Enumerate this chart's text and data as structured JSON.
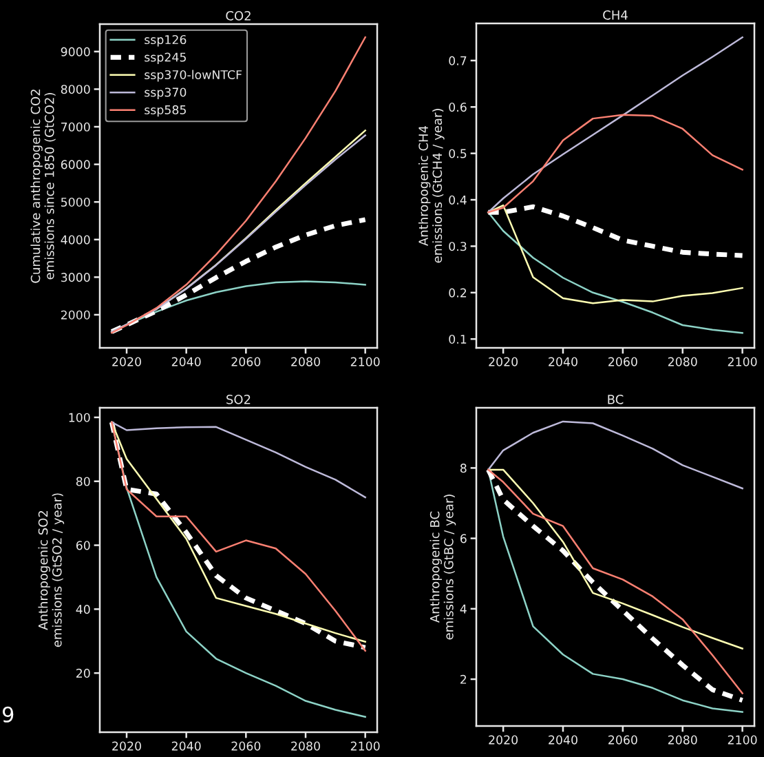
{
  "chart_data": [
    {
      "type": "line",
      "title": "CO2",
      "ylabel": "Cumulative anthropogenic CO2\nemissions since 1850 (GtCO2)",
      "x": [
        2015,
        2020,
        2030,
        2040,
        2050,
        2060,
        2070,
        2080,
        2090,
        2100
      ],
      "xlim": [
        2011,
        2104
      ],
      "xticks": [
        2020,
        2040,
        2060,
        2080,
        2100
      ],
      "ylim": [
        1120,
        9730
      ],
      "yticks": [
        2000,
        3000,
        4000,
        5000,
        6000,
        7000,
        8000,
        9000
      ],
      "grid": false,
      "legend": "top left",
      "series": [
        {
          "name": "ssp126",
          "color": "#8dd3c7",
          "values": [
            1550,
            1730,
            2080,
            2380,
            2600,
            2760,
            2860,
            2890,
            2860,
            2800
          ]
        },
        {
          "name": "ssp245",
          "color": "#ffffff",
          "line_style": "dashed",
          "values": [
            1550,
            1730,
            2100,
            2530,
            2990,
            3420,
            3800,
            4120,
            4370,
            4530
          ]
        },
        {
          "name": "ssp370-lowNTCF",
          "color": "#ffffb3",
          "values": [
            1550,
            1740,
            2150,
            2700,
            3330,
            4040,
            4780,
            5500,
            6200,
            6900
          ]
        },
        {
          "name": "ssp370",
          "color": "#bebada",
          "values": [
            1550,
            1740,
            2150,
            2690,
            3320,
            4020,
            4740,
            5450,
            6130,
            6770
          ]
        },
        {
          "name": "ssp585",
          "color": "#fb8072",
          "values": [
            1520,
            1720,
            2180,
            2800,
            3600,
            4500,
            5550,
            6700,
            7950,
            9380
          ]
        }
      ]
    },
    {
      "type": "line",
      "title": "CH4",
      "ylabel": "Anthropogenic CH4\nemissions (GtCH4 / year)",
      "x": [
        2015,
        2020,
        2030,
        2040,
        2050,
        2060,
        2070,
        2080,
        2090,
        2100
      ],
      "xlim": [
        2011,
        2104
      ],
      "xticks": [
        2020,
        2040,
        2060,
        2080,
        2100
      ],
      "ylim": [
        0.081,
        0.78
      ],
      "yticks": [
        0.1,
        0.2,
        0.3,
        0.4,
        0.5,
        0.6,
        0.7
      ],
      "grid": false,
      "series": [
        {
          "color": "#8dd3c7",
          "values": [
            0.373,
            0.333,
            0.275,
            0.232,
            0.2,
            0.18,
            0.157,
            0.13,
            0.12,
            0.113
          ]
        },
        {
          "color": "#ffffff",
          "line_style": "dashed",
          "values": [
            0.373,
            0.373,
            0.385,
            0.365,
            0.34,
            0.313,
            0.3,
            0.287,
            0.283,
            0.28
          ]
        },
        {
          "color": "#ffffb3",
          "values": [
            0.373,
            0.388,
            0.233,
            0.188,
            0.177,
            0.184,
            0.181,
            0.193,
            0.199,
            0.21
          ]
        },
        {
          "color": "#bebada",
          "values": [
            0.373,
            0.403,
            0.455,
            0.498,
            0.54,
            0.582,
            0.625,
            0.668,
            0.708,
            0.75
          ]
        },
        {
          "color": "#fb8072",
          "values": [
            0.373,
            0.383,
            0.44,
            0.528,
            0.575,
            0.583,
            0.581,
            0.553,
            0.496,
            0.465
          ]
        }
      ]
    },
    {
      "type": "line",
      "title": "SO2",
      "ylabel": "Anthropogenic SO2\nemissions (GtSO2 / year)",
      "x": [
        2015,
        2020,
        2030,
        2040,
        2050,
        2060,
        2070,
        2080,
        2090,
        2100
      ],
      "xlim": [
        2011,
        2104
      ],
      "xticks": [
        2020,
        2040,
        2060,
        2080,
        2100
      ],
      "ylim": [
        1.5,
        103
      ],
      "yticks": [
        20,
        40,
        60,
        80,
        100
      ],
      "grid": false,
      "annotations": [
        "9"
      ],
      "series": [
        {
          "color": "#8dd3c7",
          "values": [
            98.5,
            78,
            50,
            33,
            24.5,
            20,
            16,
            11.3,
            8.5,
            6.3
          ]
        },
        {
          "color": "#ffffff",
          "line_style": "dashed",
          "values": [
            98.5,
            77.5,
            76,
            64,
            50.5,
            43.5,
            39.5,
            35.5,
            30,
            28
          ]
        },
        {
          "color": "#ffffb3",
          "values": [
            98.5,
            87,
            74.5,
            62,
            43.5,
            41,
            38.5,
            35.5,
            32.5,
            29.8
          ]
        },
        {
          "color": "#bebada",
          "values": [
            98.5,
            96,
            96.6,
            96.9,
            97,
            93,
            89,
            84.5,
            80.5,
            75
          ]
        },
        {
          "color": "#fb8072",
          "values": [
            98.5,
            77.5,
            69,
            69,
            58,
            61.5,
            59,
            51,
            39.5,
            27
          ]
        }
      ]
    },
    {
      "type": "line",
      "title": "BC",
      "ylabel": "Anthropogenic BC\nemissions (GtBC / year)",
      "x": [
        2015,
        2020,
        2030,
        2040,
        2050,
        2060,
        2070,
        2080,
        2090,
        2100
      ],
      "xlim": [
        2011,
        2104
      ],
      "xticks": [
        2020,
        2040,
        2060,
        2080,
        2100
      ],
      "ylim": [
        0.67,
        9.71
      ],
      "yticks": [
        2,
        4,
        6,
        8
      ],
      "grid": false,
      "series": [
        {
          "color": "#8dd3c7",
          "values": [
            7.95,
            6.05,
            3.5,
            2.7,
            2.15,
            2.0,
            1.75,
            1.4,
            1.17,
            1.07
          ]
        },
        {
          "color": "#ffffff",
          "line_style": "dashed",
          "values": [
            7.95,
            7.1,
            6.35,
            5.65,
            4.75,
            3.95,
            3.15,
            2.4,
            1.7,
            1.4
          ]
        },
        {
          "color": "#ffffb3",
          "values": [
            7.95,
            7.95,
            7.0,
            5.9,
            4.45,
            4.15,
            3.82,
            3.48,
            3.17,
            2.87
          ]
        },
        {
          "color": "#bebada",
          "values": [
            7.95,
            8.5,
            9.0,
            9.32,
            9.27,
            8.92,
            8.55,
            8.08,
            7.75,
            7.42
          ]
        },
        {
          "color": "#fb8072",
          "values": [
            7.95,
            7.6,
            6.7,
            6.35,
            5.15,
            4.83,
            4.35,
            3.7,
            2.68,
            1.6
          ]
        }
      ]
    }
  ]
}
